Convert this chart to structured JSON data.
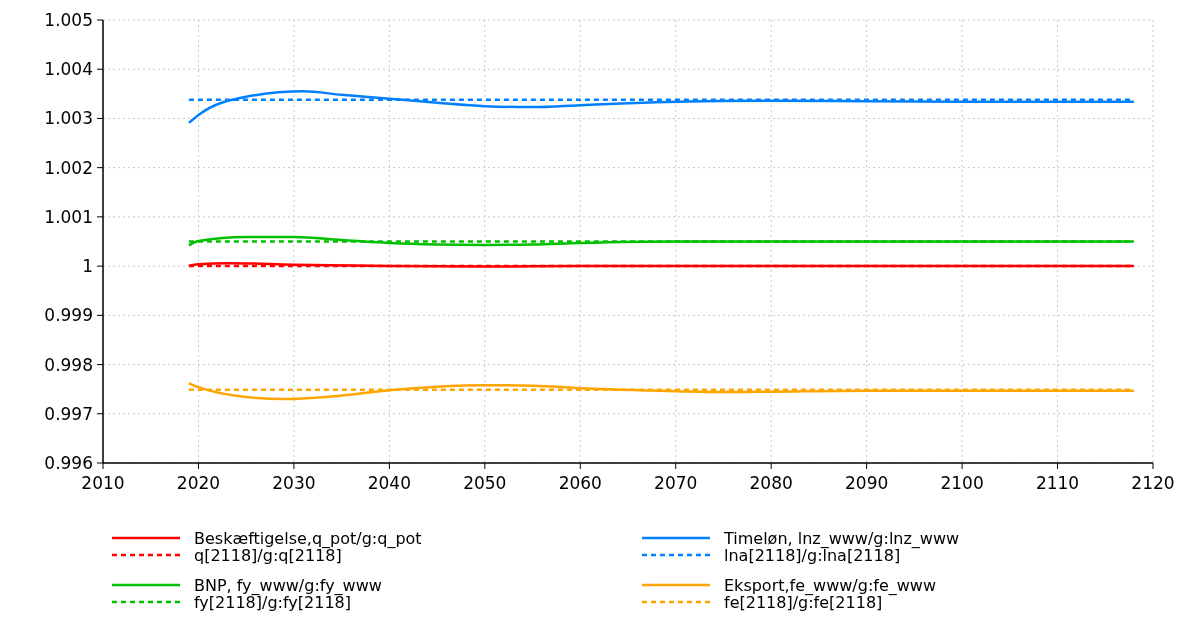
{
  "chart_data": {
    "type": "line",
    "xlim": [
      2010,
      2120
    ],
    "xticks": [
      2010,
      2020,
      2030,
      2040,
      2050,
      2060,
      2070,
      2080,
      2090,
      2100,
      2110,
      2120
    ],
    "ylim": [
      0.996,
      1.005
    ],
    "yticks": [
      0.996,
      0.997,
      0.998,
      0.999,
      1,
      1.001,
      1.002,
      1.003,
      1.004,
      1.005
    ],
    "grid": true,
    "legend": "bottom",
    "series": [
      {
        "name": "Beskæftigelse,q_pot/g:q_pot",
        "color": "#ff0000",
        "line_style": "solid",
        "x": [
          2019,
          2020,
          2023,
          2030,
          2040,
          2050,
          2060,
          2070,
          2080,
          2090,
          2100,
          2110,
          2118
        ],
        "values": [
          1.00001,
          1.00004,
          1.00006,
          1.00003,
          1.0,
          0.99999,
          1.0,
          1.0,
          1.0,
          1.0,
          1.0,
          1.0,
          1.0
        ]
      },
      {
        "name": "q[2118]/g:q[2118]",
        "color": "#ff0000",
        "line_style": "dashed",
        "x": [
          2019,
          2118
        ],
        "values": [
          1.0,
          1.0
        ]
      },
      {
        "name": "Timeløn, lnz_www/g:lnz_www",
        "color": "#0080ff",
        "line_style": "solid",
        "x": [
          2019,
          2020,
          2025,
          2031,
          2035,
          2040,
          2045,
          2050,
          2055,
          2060,
          2065,
          2070,
          2080,
          2090,
          2100,
          2110,
          2118
        ],
        "values": [
          1.00291,
          1.00307,
          1.00344,
          1.00355,
          1.00348,
          1.0034,
          1.00332,
          1.00325,
          1.00323,
          1.00327,
          1.00331,
          1.00334,
          1.00336,
          1.00335,
          1.00334,
          1.00334,
          1.00334
        ]
      },
      {
        "name": "lna[2118]/g:lna[2118]",
        "color": "#0080ff",
        "line_style": "dashed",
        "x": [
          2019,
          2118
        ],
        "values": [
          1.00338,
          1.00338
        ]
      },
      {
        "name": "BNP, fy_www/g:fy_www",
        "color": "#00c000",
        "line_style": "solid",
        "x": [
          2019,
          2020,
          2025,
          2030,
          2035,
          2040,
          2045,
          2050,
          2055,
          2060,
          2070,
          2080,
          2090,
          2100,
          2110,
          2118
        ],
        "values": [
          1.00042,
          1.00051,
          1.00059,
          1.00059,
          1.00053,
          1.00047,
          1.00044,
          1.00043,
          1.00044,
          1.00047,
          1.0005,
          1.0005,
          1.0005,
          1.0005,
          1.0005,
          1.0005
        ]
      },
      {
        "name": "fy[2118]/g:fy[2118]",
        "color": "#00c000",
        "line_style": "dashed",
        "x": [
          2019,
          2118
        ],
        "values": [
          1.0005,
          1.0005
        ]
      },
      {
        "name": "Eksport,fe_www/g:fe_www",
        "color": "#ffa500",
        "line_style": "solid",
        "x": [
          2019,
          2020,
          2025,
          2029,
          2035,
          2040,
          2045,
          2050,
          2055,
          2060,
          2070,
          2075,
          2080,
          2090,
          2100,
          2110,
          2118
        ],
        "values": [
          0.99762,
          0.99754,
          0.99734,
          0.9973,
          0.99737,
          0.99748,
          0.99755,
          0.99758,
          0.99757,
          0.99752,
          0.99746,
          0.99744,
          0.99745,
          0.99747,
          0.99747,
          0.99747,
          0.99747
        ]
      },
      {
        "name": "fe[2118]/g:fe[2118]",
        "color": "#ffa500",
        "line_style": "dashed",
        "x": [
          2019,
          2118
        ],
        "values": [
          0.99749,
          0.99749
        ]
      }
    ]
  }
}
